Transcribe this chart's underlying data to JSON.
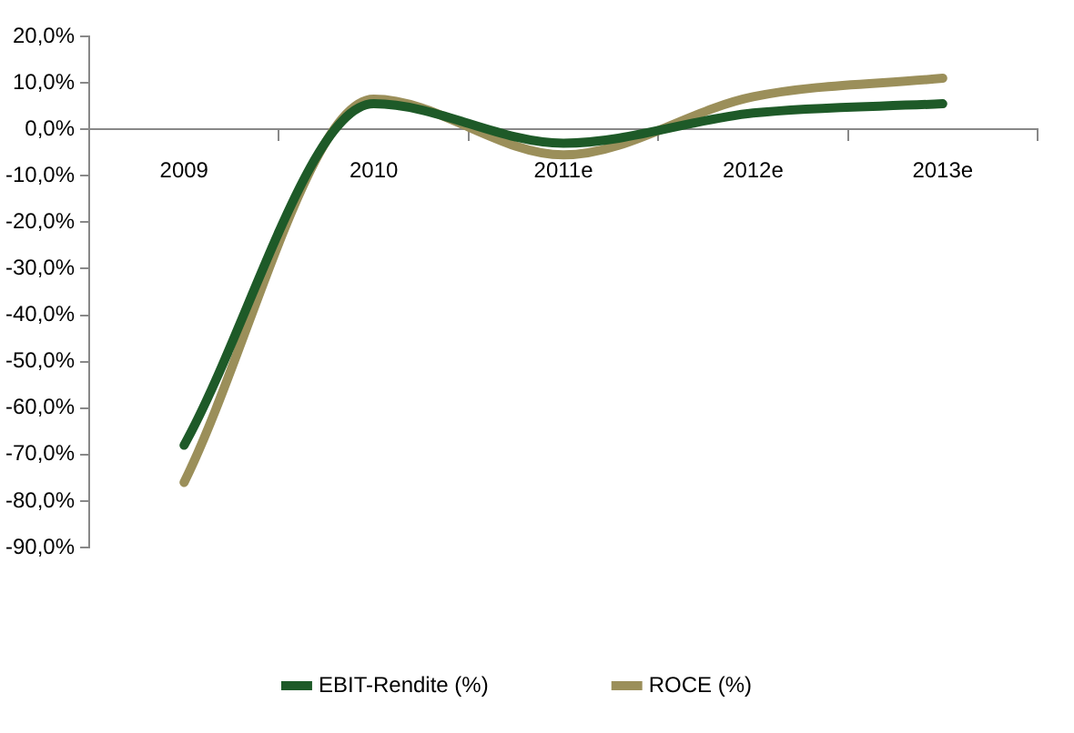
{
  "chart_data": {
    "type": "line",
    "categories": [
      "2009",
      "2010",
      "2011e",
      "2012e",
      "2013e"
    ],
    "series": [
      {
        "name": "EBIT-Rendite (%)",
        "color": "#1e5a28",
        "values": [
          -68,
          5.5,
          -3,
          3.5,
          5.5
        ]
      },
      {
        "name": "ROCE (%)",
        "color": "#9b8f5a",
        "values": [
          -76,
          6.5,
          -5.5,
          7,
          11
        ]
      }
    ],
    "ylim": [
      -90,
      20
    ],
    "yticks": [
      {
        "value": -90,
        "label": "-90,0%"
      },
      {
        "value": -80,
        "label": "-80,0%"
      },
      {
        "value": -70,
        "label": "-70,0%"
      },
      {
        "value": -60,
        "label": "-60,0%"
      },
      {
        "value": -50,
        "label": "-50,0%"
      },
      {
        "value": -40,
        "label": "-40,0%"
      },
      {
        "value": -30,
        "label": "-30,0%"
      },
      {
        "value": -20,
        "label": "-20,0%"
      },
      {
        "value": -10,
        "label": "-10,0%"
      },
      {
        "value": 0,
        "label": "0,0%"
      },
      {
        "value": 10,
        "label": "10,0%"
      },
      {
        "value": 20,
        "label": "20,0%"
      }
    ],
    "grid": false,
    "legend": "bottom",
    "marker": "none",
    "line_style": "solid"
  }
}
